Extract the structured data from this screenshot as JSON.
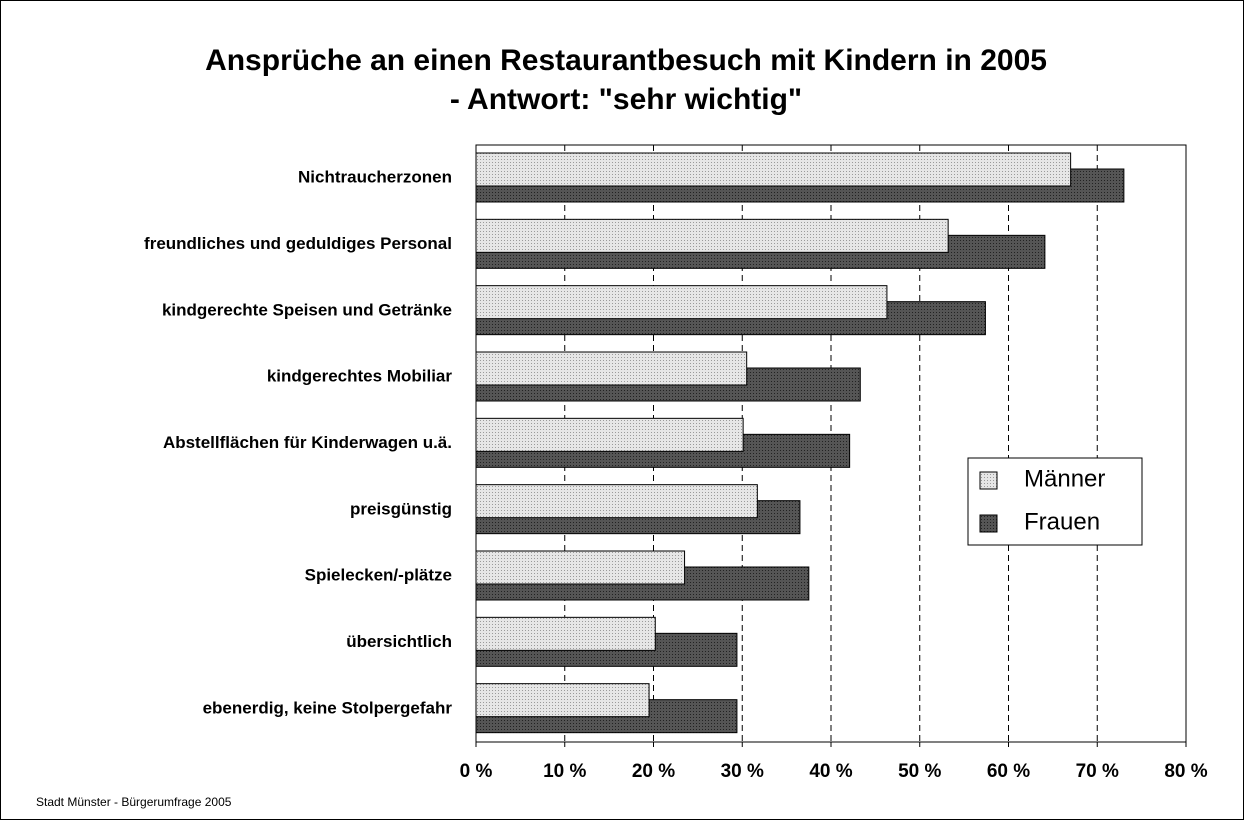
{
  "chart_data": {
    "type": "bar",
    "orientation": "horizontal",
    "title": "Ansprüche an einen Restaurantbesuch mit Kindern in 2005",
    "subtitle": "- Antwort: \"sehr wichtig\"",
    "categories": [
      "Nichtraucherzonen",
      "freundliches und geduldiges Personal",
      "kindgerechte Speisen und Getränke",
      "kindgerechtes Mobiliar",
      "Abstellflächen für Kinderwagen u.ä.",
      "preisgünstig",
      "Spielecken/-plätze",
      "übersichtlich",
      "ebenerdig, keine Stolpergefahr"
    ],
    "series": [
      {
        "name": "Männer",
        "color": "#d9d9d9",
        "values": [
          67,
          53.2,
          46.3,
          30.5,
          30.1,
          31.7,
          23.5,
          20.2,
          19.5
        ]
      },
      {
        "name": "Frauen",
        "color": "#444444",
        "values": [
          73,
          64.1,
          57.4,
          43.3,
          42.1,
          36.5,
          37.5,
          29.4,
          29.4
        ]
      }
    ],
    "xlim": [
      0,
      80
    ],
    "xticks": [
      {
        "value": 0,
        "label": "0 %"
      },
      {
        "value": 10,
        "label": "10 %"
      },
      {
        "value": 20,
        "label": "20 %"
      },
      {
        "value": 30,
        "label": "30 %"
      },
      {
        "value": 40,
        "label": "40 %"
      },
      {
        "value": 50,
        "label": "50 %"
      },
      {
        "value": 60,
        "label": "60 %"
      },
      {
        "value": 70,
        "label": "70 %"
      },
      {
        "value": 80,
        "label": "80 %"
      }
    ],
    "grid": true,
    "legend": "right",
    "source": "Stadt Münster - Bürgerumfrage 2005"
  }
}
